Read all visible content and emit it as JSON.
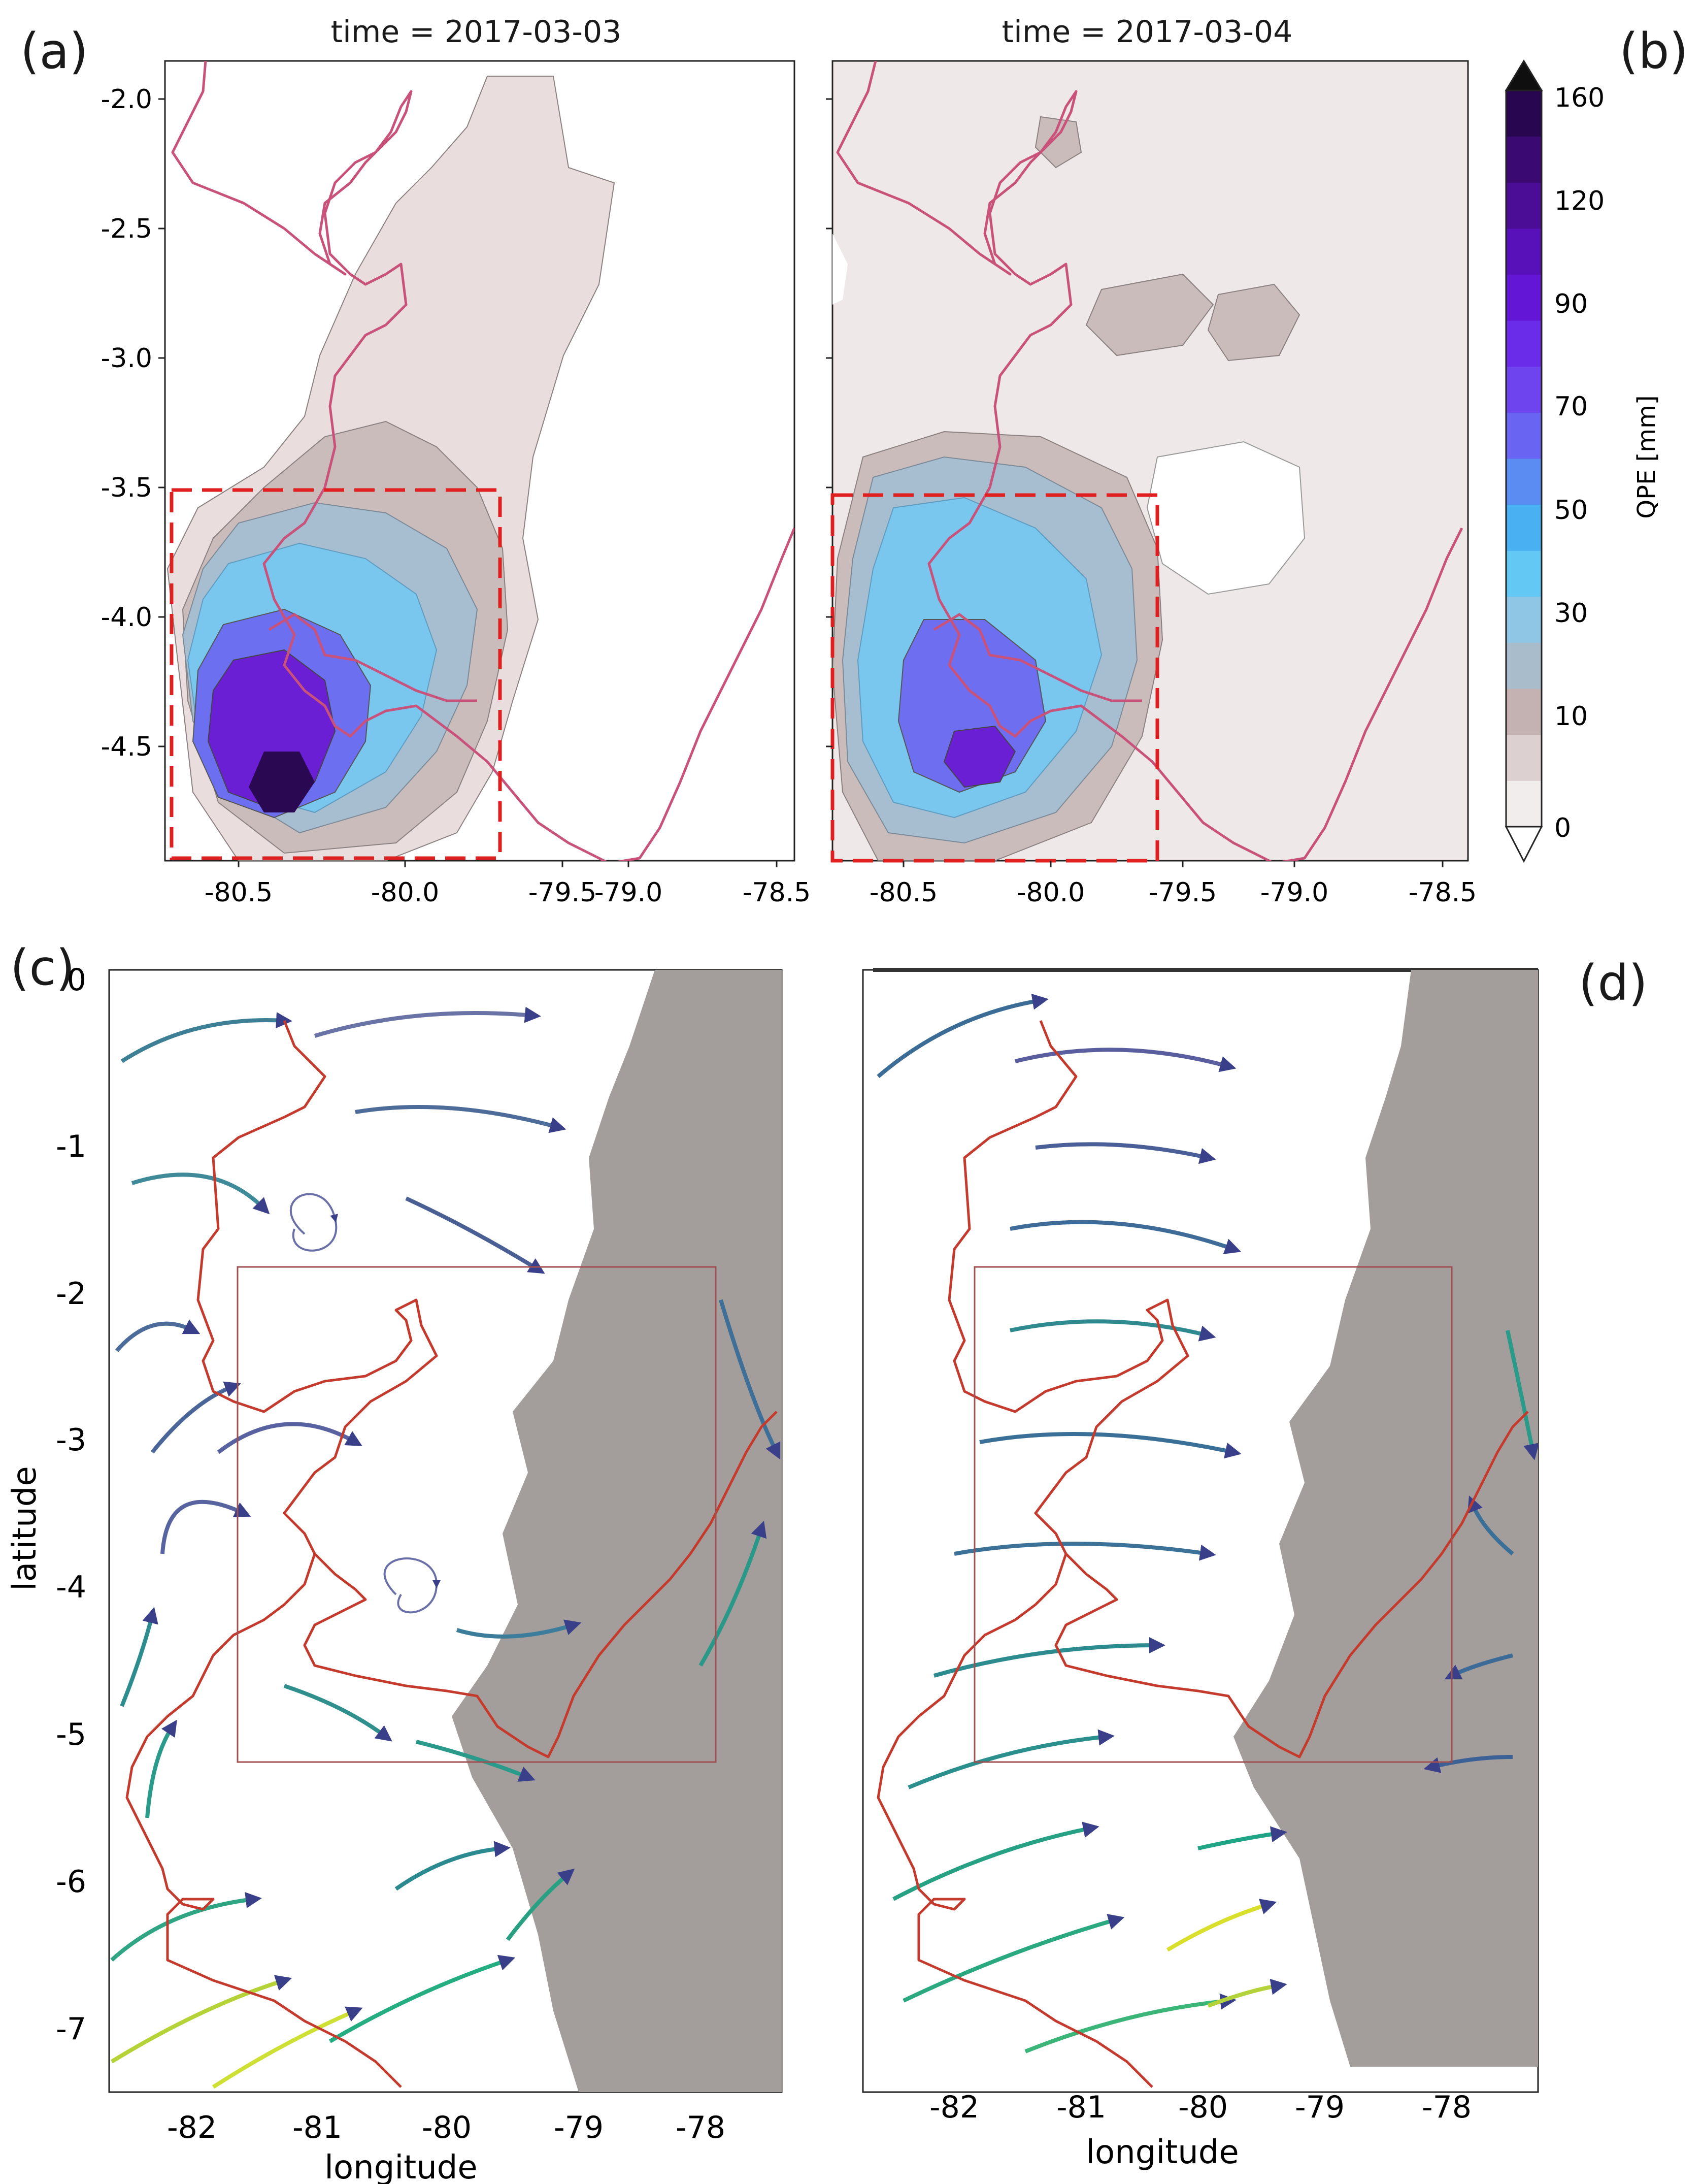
{
  "panels": {
    "a": {
      "letter": "(a)",
      "title": "time = 2017-03-03"
    },
    "b": {
      "letter": "(b)",
      "title": "time = 2017-03-04"
    },
    "c": {
      "letter": "(c)"
    },
    "d": {
      "letter": "(d)"
    }
  },
  "top_axes": {
    "y_ticks": [
      "-2.0",
      "-2.5",
      "-3.0",
      "-3.5",
      "-4.0",
      "-4.5"
    ],
    "x_ticks": [
      "-80.5",
      "-80.0",
      "-79.5",
      "-79.0",
      "-78.5"
    ]
  },
  "colorbar": {
    "label": "QPE [mm]",
    "ticks": [
      "160",
      "120",
      "90",
      "70",
      "50",
      "30",
      "10",
      "0"
    ],
    "colors": [
      "#f2eded",
      "#ddd0d0",
      "#c4b2b2",
      "#a9bccc",
      "#8fc6e6",
      "#63c8f4",
      "#49b0f2",
      "#5a8cf2",
      "#6a64f2",
      "#6d44ee",
      "#6a2ce8",
      "#6416d6",
      "#5810b8",
      "#4b0c96",
      "#3a0a72",
      "#280650"
    ],
    "extend_max_color": "#0f0f0f"
  },
  "bottom_axes": {
    "ylabel": "latitude",
    "xlabel_c": "longitude",
    "xlabel_d": "longitude",
    "y_ticks": [
      "0",
      "-1",
      "-2",
      "-3",
      "-4",
      "-5",
      "-6",
      "-7"
    ],
    "x_ticks": [
      "-82",
      "-81",
      "-80",
      "-79",
      "-78"
    ]
  },
  "colors": {
    "coastline": "#c9527a",
    "coastline_bottom": "#c43a2c",
    "box_dashed": "#e02020",
    "terrain": "#a39d9c",
    "qpe_background": "#efe8e8"
  }
}
